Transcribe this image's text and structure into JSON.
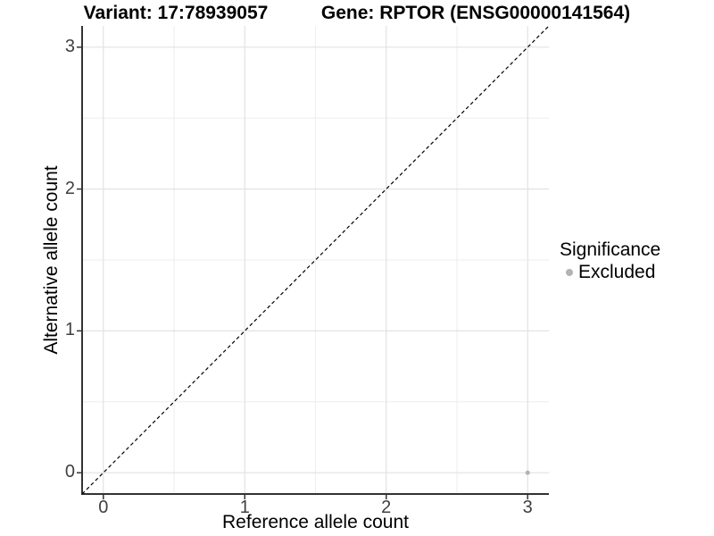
{
  "chart_data": {
    "type": "scatter",
    "titles": {
      "left": "Variant: 17:78939057",
      "right": "Gene: RPTOR (ENSG00000141564)"
    },
    "xlabel": "Reference allele count",
    "ylabel": "Alternative allele count",
    "x_ticks": [
      0,
      1,
      2,
      3
    ],
    "y_ticks": [
      0,
      1,
      2,
      3
    ],
    "x_tick_labels": [
      "0",
      "1",
      "2",
      "3"
    ],
    "y_tick_labels": [
      "0",
      "1",
      "2",
      "3"
    ],
    "xlim": [
      -0.15,
      3.15
    ],
    "ylim": [
      -0.15,
      3.15
    ],
    "grid": {
      "major": [
        0,
        1,
        2,
        3
      ],
      "minor": [
        0.5,
        1.5,
        2.5
      ],
      "major_color": "#e2e2e2",
      "minor_color": "#eeeeee"
    },
    "reference_line": {
      "kind": "identity y = x",
      "style": "dashed",
      "color": "#000000",
      "from": [
        -0.15,
        -0.15
      ],
      "to": [
        3.15,
        3.15
      ]
    },
    "series": [
      {
        "name": "Excluded",
        "color": "#b3b3b3",
        "points": [
          {
            "x": 3,
            "y": 0
          }
        ]
      }
    ],
    "legend": {
      "title": "Significance",
      "position": "right",
      "entries": [
        {
          "label": "Excluded",
          "color": "#b3b3b3"
        }
      ]
    },
    "axis_color": "#333333",
    "tick_label_color": "#404040",
    "background": "#ffffff"
  }
}
